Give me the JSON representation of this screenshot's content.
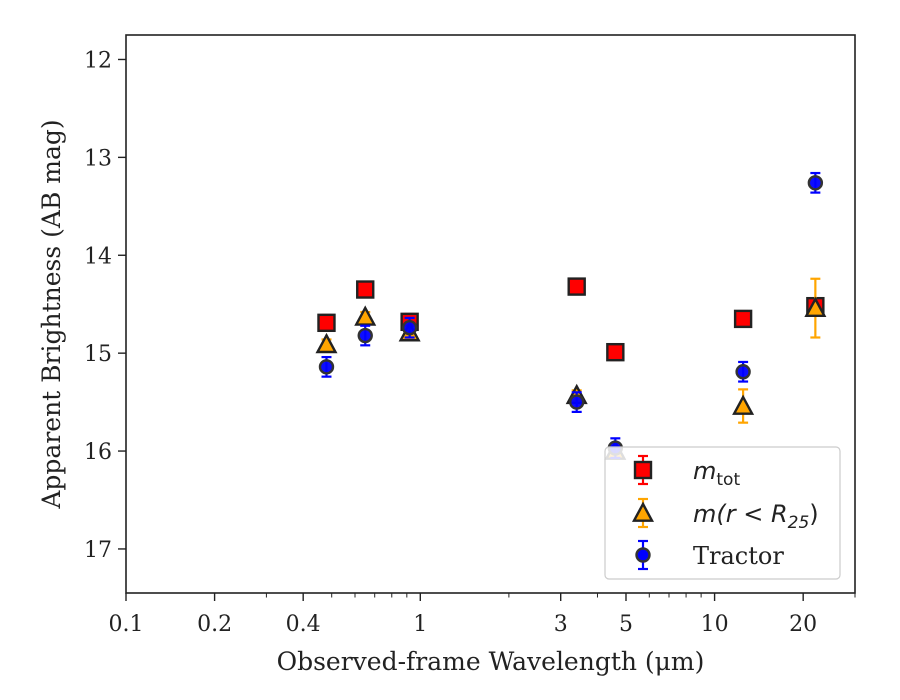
{
  "chart_data": {
    "type": "scatter",
    "title": "",
    "xlabel": "Observed-frame Wavelength (μm)",
    "ylabel": "Apparent Brightness (AB mag)",
    "xscale": "log",
    "xlim": [
      0.1,
      30
    ],
    "ylim": [
      17.45,
      11.75
    ],
    "y_inverted": true,
    "x_ticks": [
      0.1,
      0.2,
      0.4,
      1,
      3,
      5,
      10,
      20
    ],
    "x_tick_labels": [
      "0.1",
      "0.2",
      "0.4",
      "1",
      "3",
      "5",
      "10",
      "20"
    ],
    "y_ticks": [
      12,
      13,
      14,
      15,
      16,
      17
    ],
    "y_tick_labels": [
      "12",
      "13",
      "14",
      "15",
      "16",
      "17"
    ],
    "grid": false,
    "legend_position": "lower-right",
    "series": [
      {
        "name": "m_tot",
        "marker": "square",
        "fill": "#ff0000",
        "edge": "#222222",
        "errcolor": "#ff0000",
        "points": [
          {
            "x": 0.48,
            "y": 14.69,
            "err": 0.08
          },
          {
            "x": 0.65,
            "y": 14.35,
            "err": 0.08
          },
          {
            "x": 0.92,
            "y": 14.68,
            "err": 0.08
          },
          {
            "x": 3.4,
            "y": 14.32,
            "err": 0.08
          },
          {
            "x": 4.6,
            "y": 14.99,
            "err": 0.08
          },
          {
            "x": 12.5,
            "y": 14.65,
            "err": 0.08
          },
          {
            "x": 22.0,
            "y": 14.52,
            "err": 0.08
          }
        ]
      },
      {
        "name": "m(r<R25)",
        "marker": "triangle",
        "fill": "#ffa500",
        "edge": "#222222",
        "errcolor": "#ffa500",
        "points": [
          {
            "x": 0.48,
            "y": 14.91,
            "err": 0.05
          },
          {
            "x": 0.65,
            "y": 14.63,
            "err": 0.05
          },
          {
            "x": 0.92,
            "y": 14.79,
            "err": 0.05
          },
          {
            "x": 3.4,
            "y": 15.43,
            "err": 0.05
          },
          {
            "x": 4.6,
            "y": 16.0,
            "err": 0.05
          },
          {
            "x": 12.5,
            "y": 15.54,
            "err": 0.17
          },
          {
            "x": 22.0,
            "y": 14.54,
            "err": 0.3
          }
        ]
      },
      {
        "name": "Tractor",
        "marker": "circle",
        "fill": "#0000ff",
        "edge": "#333333",
        "errcolor": "#0000ff",
        "points": [
          {
            "x": 0.48,
            "y": 15.14,
            "err": 0.1
          },
          {
            "x": 0.65,
            "y": 14.82,
            "err": 0.1
          },
          {
            "x": 0.92,
            "y": 14.74,
            "err": 0.1
          },
          {
            "x": 3.4,
            "y": 15.5,
            "err": 0.1
          },
          {
            "x": 4.6,
            "y": 15.97,
            "err": 0.1
          },
          {
            "x": 12.5,
            "y": 15.19,
            "err": 0.1
          },
          {
            "x": 22.0,
            "y": 13.26,
            "err": 0.1
          }
        ]
      }
    ],
    "legend": {
      "entries": [
        {
          "series": "m_tot",
          "label_main": "m",
          "label_sub": "tot",
          "label_tail": ""
        },
        {
          "series": "m(r<R25)",
          "label_main": "m(r < R",
          "label_sub": "25",
          "label_tail": ")"
        },
        {
          "series": "Tractor",
          "label_main": "Tractor",
          "label_sub": "",
          "label_tail": ""
        }
      ]
    }
  }
}
